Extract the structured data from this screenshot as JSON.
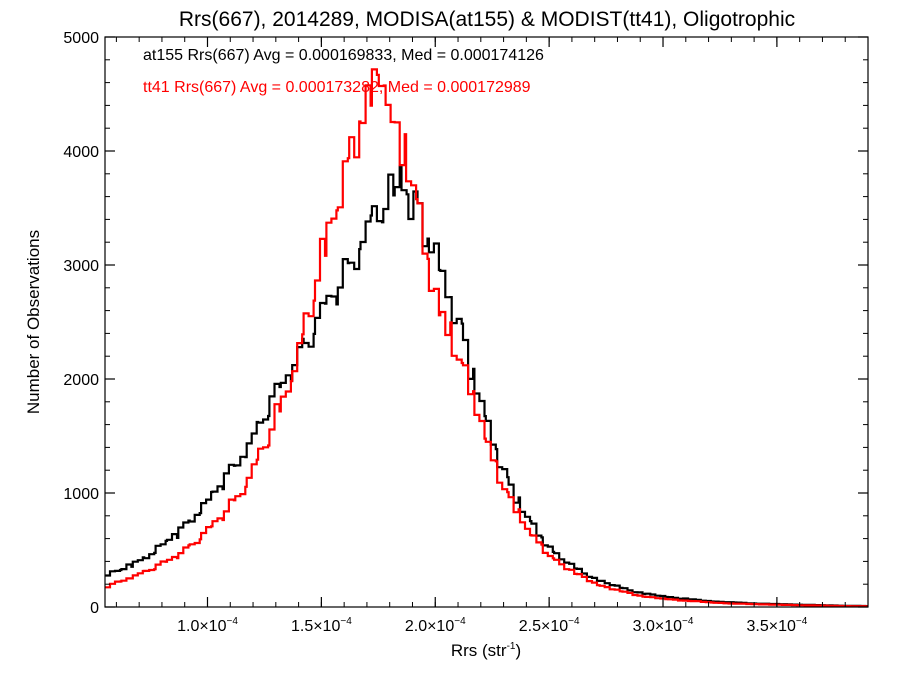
{
  "chart_data": {
    "type": "histogram",
    "title": "Rrs(667), 2014289, MODISA(at155) & MODIST(tt41), Oligotrophic",
    "xlabel": "Rrs (str",
    "xlabel_exponent": "-1",
    "xlabel_suffix": ")",
    "ylabel": "Number of Observations",
    "xlim": [
      5.5e-05,
      0.00039
    ],
    "ylim": [
      0,
      5000
    ],
    "x_ticks": [
      {
        "value": 0.0001,
        "mantissa": "1.0×10",
        "exponent": "−4"
      },
      {
        "value": 0.00015,
        "mantissa": "1.5×10",
        "exponent": "−4"
      },
      {
        "value": 0.0002,
        "mantissa": "2.0×10",
        "exponent": "−4"
      },
      {
        "value": 0.00025,
        "mantissa": "2.5×10",
        "exponent": "−4"
      },
      {
        "value": 0.0003,
        "mantissa": "3.0×10",
        "exponent": "−4"
      },
      {
        "value": 0.00035,
        "mantissa": "3.5×10",
        "exponent": "−4"
      }
    ],
    "y_ticks": [
      0,
      1000,
      2000,
      3000,
      4000,
      5000
    ],
    "annotations": [
      {
        "text": "at155 Rrs(667) Avg = 0.000169833, Med = 0.000174126",
        "color": "#000000"
      },
      {
        "text": "tt41 Rrs(667) Avg = 0.000173282, Med = 0.000172989",
        "color": "#ff0000"
      }
    ],
    "series": [
      {
        "color": "#000000",
        "points": [
          [
            5.5e-05,
            280
          ],
          [
            6e-05,
            320
          ],
          [
            6.5e-05,
            370
          ],
          [
            7e-05,
            420
          ],
          [
            7.5e-05,
            480
          ],
          [
            8e-05,
            560
          ],
          [
            8.5e-05,
            640
          ],
          [
            9e-05,
            740
          ],
          [
            9.5e-05,
            840
          ],
          [
            0.0001,
            960
          ],
          [
            0.000105,
            1080
          ],
          [
            0.00011,
            1220
          ],
          [
            0.000115,
            1360
          ],
          [
            0.00012,
            1540
          ],
          [
            0.000125,
            1720
          ],
          [
            0.00013,
            1900
          ],
          [
            0.000135,
            2080
          ],
          [
            0.00014,
            2260
          ],
          [
            0.000145,
            2420
          ],
          [
            0.00015,
            2600
          ],
          [
            0.000155,
            2780
          ],
          [
            0.00016,
            2960
          ],
          [
            0.000165,
            3150
          ],
          [
            0.00017,
            3330
          ],
          [
            0.000175,
            3480
          ],
          [
            0.00018,
            3620
          ],
          [
            0.000183,
            3700
          ],
          [
            0.000186,
            3540
          ],
          [
            0.00019,
            3540
          ],
          [
            0.000195,
            3250
          ],
          [
            0.0002,
            3000
          ],
          [
            0.000205,
            2750
          ],
          [
            0.00021,
            2450
          ],
          [
            0.000215,
            2050
          ],
          [
            0.00022,
            1700
          ],
          [
            0.000225,
            1400
          ],
          [
            0.00023,
            1150
          ],
          [
            0.000235,
            930
          ],
          [
            0.00024,
            760
          ],
          [
            0.000245,
            610
          ],
          [
            0.00025,
            500
          ],
          [
            0.00026,
            340
          ],
          [
            0.00027,
            240
          ],
          [
            0.00028,
            170
          ],
          [
            0.00029,
            120
          ],
          [
            0.0003,
            90
          ],
          [
            0.00031,
            70
          ],
          [
            0.00032,
            50
          ],
          [
            0.00033,
            40
          ],
          [
            0.00034,
            30
          ],
          [
            0.00035,
            25
          ],
          [
            0.00036,
            20
          ],
          [
            0.00037,
            15
          ],
          [
            0.00038,
            10
          ],
          [
            0.00039,
            8
          ]
        ]
      },
      {
        "color": "#ff0000",
        "points": [
          [
            5.5e-05,
            180
          ],
          [
            6e-05,
            220
          ],
          [
            6.5e-05,
            260
          ],
          [
            7e-05,
            300
          ],
          [
            7.5e-05,
            340
          ],
          [
            8e-05,
            390
          ],
          [
            8.5e-05,
            450
          ],
          [
            9e-05,
            520
          ],
          [
            9.5e-05,
            600
          ],
          [
            0.0001,
            690
          ],
          [
            0.000105,
            800
          ],
          [
            0.00011,
            920
          ],
          [
            0.000115,
            1060
          ],
          [
            0.00012,
            1250
          ],
          [
            0.000125,
            1460
          ],
          [
            0.00013,
            1720
          ],
          [
            0.000135,
            2000
          ],
          [
            0.00014,
            2320
          ],
          [
            0.000145,
            2700
          ],
          [
            0.00015,
            3120
          ],
          [
            0.000155,
            3530
          ],
          [
            0.00016,
            3880
          ],
          [
            0.000165,
            4180
          ],
          [
            0.00017,
            4450
          ],
          [
            0.000173,
            4550
          ],
          [
            0.000176,
            4500
          ],
          [
            0.00018,
            4300
          ],
          [
            0.000185,
            4020
          ],
          [
            0.00019,
            3600
          ],
          [
            0.000195,
            3050
          ],
          [
            0.0002,
            2650
          ],
          [
            0.000205,
            2420
          ],
          [
            0.00021,
            2150
          ],
          [
            0.000215,
            1850
          ],
          [
            0.00022,
            1550
          ],
          [
            0.000225,
            1250
          ],
          [
            0.00023,
            1020
          ],
          [
            0.000235,
            820
          ],
          [
            0.00024,
            660
          ],
          [
            0.000245,
            540
          ],
          [
            0.00025,
            440
          ],
          [
            0.00026,
            300
          ],
          [
            0.00027,
            200
          ],
          [
            0.00028,
            140
          ],
          [
            0.00029,
            95
          ],
          [
            0.0003,
            70
          ],
          [
            0.00031,
            55
          ],
          [
            0.00032,
            40
          ],
          [
            0.00033,
            30
          ],
          [
            0.00034,
            25
          ],
          [
            0.00035,
            20
          ],
          [
            0.00036,
            15
          ],
          [
            0.00037,
            12
          ],
          [
            0.00038,
            8
          ],
          [
            0.00039,
            6
          ]
        ]
      }
    ]
  }
}
